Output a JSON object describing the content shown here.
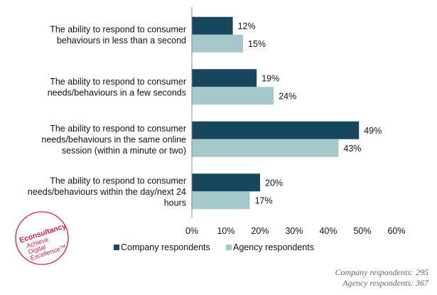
{
  "chart_data": {
    "type": "bar",
    "orientation": "horizontal",
    "categories": [
      [
        "The ability to respond to consumer",
        "behaviours in less than a second"
      ],
      [
        "The ability to respond to consumer",
        "needs/behaviours in a few seconds"
      ],
      [
        "The ability to respond to consumer",
        "needs/behaviours in the same online",
        "session (within a minute or two)"
      ],
      [
        "The ability to respond to consumer",
        "needs/behaviours within the day/next 24",
        "hours"
      ]
    ],
    "series": [
      {
        "name": "Company respondents",
        "values": [
          12,
          19,
          49,
          20
        ],
        "color": "#17475e"
      },
      {
        "name": "Agency respondents",
        "values": [
          15,
          24,
          43,
          17
        ],
        "color": "#a5c8cb"
      }
    ],
    "data_labels": [
      [
        "12%",
        "19%",
        "49%",
        "20%"
      ],
      [
        "15%",
        "24%",
        "43%",
        "17%"
      ]
    ],
    "xlim": [
      0,
      60
    ],
    "xticks": [
      0,
      10,
      20,
      30,
      40,
      50,
      60
    ],
    "xtick_labels": [
      "0%",
      "10%",
      "20%",
      "30%",
      "40%",
      "50%",
      "60%"
    ],
    "legend_position": "bottom",
    "grid": false
  },
  "footnotes": [
    "Company respondents: 295",
    "Agency respondents: 367"
  ],
  "logo": {
    "brand": "Econsultancy",
    "tagline": [
      "Achieve",
      "Digital",
      "Excellence™"
    ],
    "color": "#d41f3a"
  }
}
